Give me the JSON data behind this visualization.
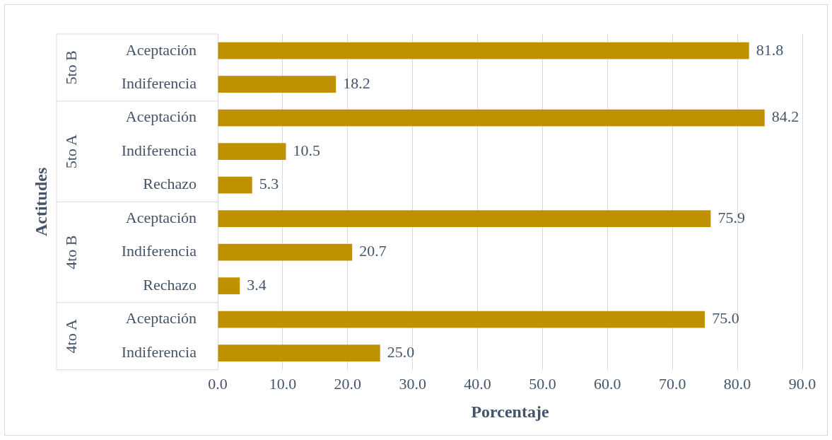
{
  "chart_data": {
    "type": "bar",
    "orientation": "horizontal",
    "xlabel": "Porcentaje",
    "ylabel": "Actitudes",
    "categories": [
      "Aceptación",
      "Indiferencia",
      "Aceptación",
      "Indiferencia",
      "Rechazo",
      "Aceptación",
      "Indiferencia",
      "Rechazo",
      "Aceptación",
      "Indiferencia"
    ],
    "values": [
      81.8,
      18.2,
      84.2,
      10.5,
      5.3,
      75.9,
      20.7,
      3.4,
      75.0,
      25.0
    ],
    "value_labels": [
      "81.8",
      "18.2",
      "84.2",
      "10.5",
      "5.3",
      "75.9",
      "20.7",
      "3.4",
      "75.0",
      "25.0"
    ],
    "color": "#bf9000",
    "annotations": [
      "5to B",
      "5to A",
      "4to B",
      "4to A"
    ],
    "xlim": [
      0,
      90
    ],
    "xticks": [
      {
        "value": 0,
        "label": "0.0"
      },
      {
        "value": 10,
        "label": "10.0"
      },
      {
        "value": 20,
        "label": "20.0"
      },
      {
        "value": 30,
        "label": "30.0"
      },
      {
        "value": 40,
        "label": "40.0"
      },
      {
        "value": 50,
        "label": "50.0"
      },
      {
        "value": 60,
        "label": "60.0"
      },
      {
        "value": 70,
        "label": "70.0"
      },
      {
        "value": 80,
        "label": "80.0"
      },
      {
        "value": 90,
        "label": "90.0"
      }
    ],
    "grid": "x",
    "legend": false
  }
}
